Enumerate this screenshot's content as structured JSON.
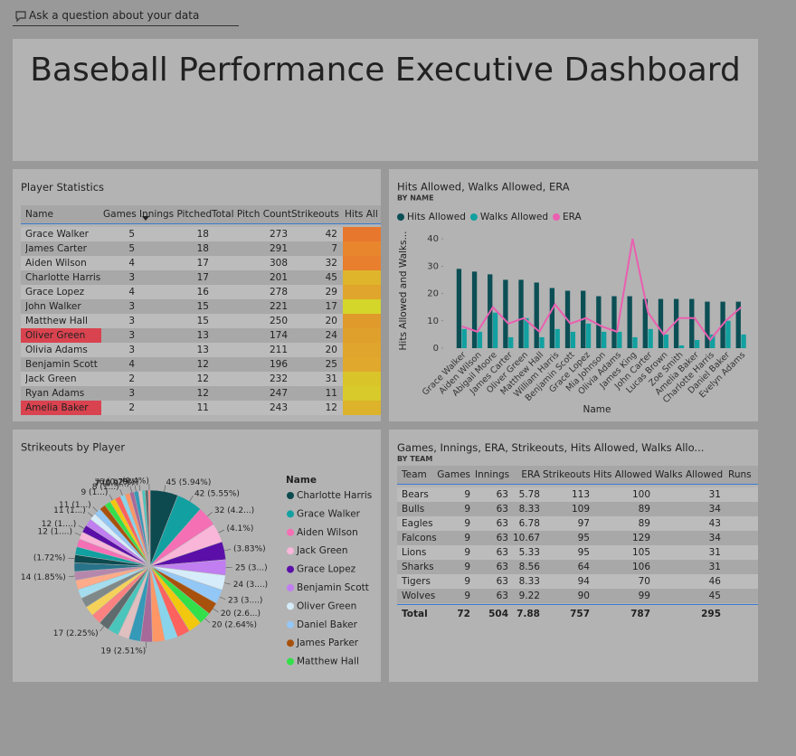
{
  "qa": {
    "text": "Ask a question about your data"
  },
  "header": {
    "title": "Baseball Performance Executive Dashboard"
  },
  "player_table": {
    "title": "Player Statistics",
    "columns": [
      "Name",
      "Games",
      "Innings Pitched",
      "Total Pitch Count",
      "Strikeouts",
      "Hits All"
    ],
    "rows": [
      {
        "cells": [
          "Grace Walker",
          5,
          18,
          273,
          42
        ],
        "hits_color": "#e8772e"
      },
      {
        "cells": [
          "James Carter",
          5,
          18,
          291,
          7
        ],
        "hits_color": "#e8862e"
      },
      {
        "cells": [
          "Aiden Wilson",
          4,
          17,
          308,
          32
        ],
        "hits_color": "#e87f2e"
      },
      {
        "cells": [
          "Charlotte Harris",
          3,
          17,
          201,
          45
        ],
        "hits_color": "#dfb52b"
      },
      {
        "cells": [
          "Grace Lopez",
          4,
          16,
          278,
          29
        ],
        "hits_color": "#e0a52c"
      },
      {
        "cells": [
          "John Walker",
          3,
          15,
          221,
          17
        ],
        "hits_color": "#d4d62a"
      },
      {
        "cells": [
          "Matthew Hall",
          3,
          15,
          250,
          20
        ],
        "hits_color": "#e09a2c"
      },
      {
        "cells": [
          "Oliver Green",
          3,
          13,
          174,
          24
        ],
        "hits_color": "#e0a02c",
        "name_highlight": "#d9434f"
      },
      {
        "cells": [
          "Olivia Adams",
          3,
          13,
          211,
          20
        ],
        "hits_color": "#e0a52c"
      },
      {
        "cells": [
          "Benjamin Scott",
          4,
          12,
          196,
          25
        ],
        "hits_color": "#e0a82c"
      },
      {
        "cells": [
          "Jack Green",
          2,
          12,
          232,
          31
        ],
        "hits_color": "#d9c42a"
      },
      {
        "cells": [
          "Ryan Adams",
          3,
          12,
          247,
          11
        ],
        "hits_color": "#d8ca2a"
      },
      {
        "cells": [
          "Amelia Baker",
          2,
          11,
          243,
          12
        ],
        "hits_color": "#dcb32b",
        "name_highlight": "#d9434f"
      }
    ]
  },
  "chart_data": [
    {
      "type": "combo",
      "title": "Hits Allowed, Walks Allowed, ERA",
      "subtitle": "BY NAME",
      "x_label": "Name",
      "y_label": "Hits Allowed and Walks...",
      "categories": [
        "Grace Walker",
        "Aiden Wilson",
        "Abigail Moore",
        "James Carter",
        "Oliver Green",
        "Matthew Hall",
        "William Harris",
        "Benjamin Scott",
        "Grace Lopez",
        "Mia Johnson",
        "Olivia Adams",
        "James King",
        "John Carter",
        "Lucas Brown",
        "Zoe Smith",
        "Amelia Baker",
        "Charlotte Harris",
        "Daniel Baker",
        "Evelyn Adams"
      ],
      "series": [
        {
          "name": "Hits Allowed",
          "kind": "bar",
          "color": "#0b4f55",
          "values": [
            29,
            28,
            27,
            25,
            25,
            24,
            22,
            21,
            21,
            19,
            19,
            19,
            18,
            18,
            18,
            18,
            17,
            17,
            17
          ]
        },
        {
          "name": "Walks Allowed",
          "kind": "bar",
          "color": "#12a0a0",
          "values": [
            7,
            6,
            13,
            4,
            11,
            4,
            7,
            6,
            9,
            6,
            6,
            4,
            7,
            5,
            1,
            3,
            5,
            10,
            5
          ]
        },
        {
          "name": "ERA",
          "kind": "line",
          "color": "#ea5fb0",
          "values": [
            8,
            6,
            15,
            9,
            11,
            6,
            16,
            9,
            11,
            8,
            6,
            40,
            13,
            5,
            11,
            11,
            3,
            10,
            15
          ]
        }
      ],
      "ylim": [
        0,
        42
      ],
      "yticks": [
        0,
        10,
        20,
        30,
        40
      ]
    },
    {
      "type": "pie",
      "title": "Strikeouts by Player",
      "legend_title": "Name",
      "categories": [
        "Charlotte Harris",
        "Grace Walker",
        "Aiden Wilson",
        "Jack Green",
        "Grace Lopez",
        "Benjamin Scott",
        "Oliver Green",
        "Daniel Baker",
        "James Parker",
        "Matthew Hall",
        null,
        null,
        null,
        null,
        null,
        null,
        null,
        null,
        null,
        null,
        null,
        null,
        null,
        null,
        null,
        null,
        null,
        null,
        null,
        null,
        null,
        null,
        null,
        null,
        null,
        null,
        null,
        null,
        null,
        null,
        null,
        null,
        null,
        null,
        null,
        null
      ],
      "values": [
        45,
        42,
        32,
        31,
        29,
        25,
        24,
        23,
        20,
        20,
        22,
        21,
        21,
        20,
        19,
        19,
        18,
        18,
        17,
        17,
        16,
        16,
        15,
        15,
        14,
        14,
        13,
        13,
        13,
        12,
        12,
        12,
        11,
        11,
        10,
        10,
        9,
        9,
        8,
        8,
        7,
        7,
        6,
        5,
        5,
        3
      ],
      "value_labels": [
        "45 (5.94%)",
        "42 (5.55%)",
        "32 (4.2...)",
        "(4.1%)",
        "(3.83%)",
        "25 (3...)",
        "24 (3....)",
        "23 (3....)",
        "20 (2.6...)",
        "20 (2.64%)",
        null,
        null,
        null,
        null,
        "19 (2.51%)",
        null,
        null,
        null,
        "17 (2.25%)",
        null,
        null,
        null,
        null,
        null,
        "14 (1.85%)",
        null,
        "(1.72%)",
        null,
        null,
        "12 (1....)",
        "12 (1....)",
        null,
        "11 (1...)",
        "11 (1...)",
        null,
        null,
        "9 (1...)",
        null,
        "8 (1...)",
        null,
        "7 (0.9...)",
        "7 (0.92%)",
        "6 (0.79%)",
        null,
        null,
        "(0.4%)"
      ],
      "colors": [
        "#0d4a4f",
        "#12a0a0",
        "#f56fb5",
        "#f9b6d8",
        "#5b0fa8",
        "#c07ef0",
        "#d6ecfa",
        "#93c7f5",
        "#a8510c",
        "#33e04a",
        "#f2c80f",
        "#fd625e",
        "#8ad4eb",
        "#fe9666",
        "#a66999",
        "#3599b8",
        "#dfbfbf",
        "#4ac5bb",
        "#5f6b6d",
        "#fb8281",
        "#f4d25a",
        "#7f898a",
        "#a4ddee",
        "#fdab89",
        "#b687ac",
        "#28738a"
      ]
    }
  ],
  "team_table": {
    "title": "Games, Innings, ERA, Strikeouts, Hits Allowed, Walks Allo...",
    "subtitle": "BY TEAM",
    "columns": [
      "Team",
      "Games",
      "Innings",
      "ERA",
      "Strikeouts",
      "Hits Allowed",
      "Walks Allowed",
      "Runs"
    ],
    "rows": [
      [
        "Bears",
        9,
        63,
        5.78,
        113,
        100,
        31
      ],
      [
        "Bulls",
        9,
        63,
        8.33,
        109,
        89,
        34
      ],
      [
        "Eagles",
        9,
        63,
        6.78,
        97,
        89,
        43
      ],
      [
        "Falcons",
        9,
        63,
        10.67,
        95,
        129,
        34
      ],
      [
        "Lions",
        9,
        63,
        5.33,
        95,
        105,
        31
      ],
      [
        "Sharks",
        9,
        63,
        8.56,
        64,
        106,
        31
      ],
      [
        "Tigers",
        9,
        63,
        8.33,
        94,
        70,
        46
      ],
      [
        "Wolves",
        9,
        63,
        9.22,
        90,
        99,
        45
      ]
    ],
    "total": [
      "Total",
      72,
      504,
      7.88,
      757,
      787,
      295
    ]
  }
}
